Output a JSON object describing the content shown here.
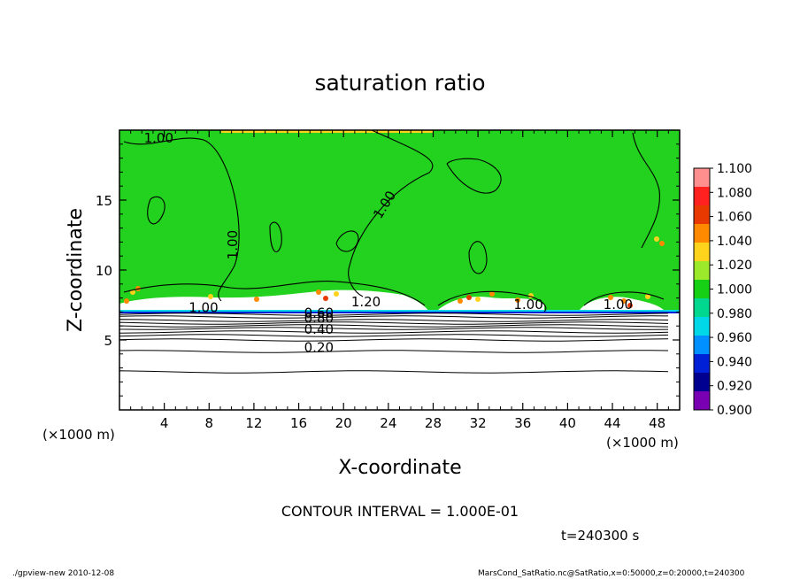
{
  "chart_data": {
    "type": "contour",
    "title": "saturation ratio",
    "xlabel": "X-coordinate",
    "ylabel": "Z-coordinate",
    "x_unit_left": "(×1000 m)",
    "x_unit_right": "(×1000 m)",
    "xlim": [
      0,
      50
    ],
    "ylim": [
      0,
      20
    ],
    "x_ticks": [
      4,
      8,
      12,
      16,
      20,
      24,
      28,
      32,
      36,
      40,
      44,
      48
    ],
    "y_ticks": [
      5,
      10,
      15
    ],
    "contour_interval_text": "CONTOUR INTERVAL = 1.000E-01",
    "time_text": "t=240300 s",
    "contour_labels": [
      {
        "text": "1.00",
        "x": 3.5,
        "y": 19.1
      },
      {
        "text": "1.00",
        "x": 24.0,
        "y": 14.5,
        "rot": -58
      },
      {
        "text": "1.00",
        "x": 10.5,
        "y": 11.8,
        "rot": -90
      },
      {
        "text": "1.20",
        "x": 22.0,
        "y": 7.4
      },
      {
        "text": "1.00",
        "x": 7.5,
        "y": 7.0
      },
      {
        "text": "1.00",
        "x": 36.5,
        "y": 7.2
      },
      {
        "text": "1.00",
        "x": 44.5,
        "y": 7.2
      },
      {
        "text": "0.60",
        "x": 17.8,
        "y": 6.6
      },
      {
        "text": "0.80",
        "x": 17.8,
        "y": 6.25
      },
      {
        "text": "0.40",
        "x": 17.8,
        "y": 5.45
      },
      {
        "text": "0.20",
        "x": 17.8,
        "y": 4.15
      }
    ],
    "colorbar": {
      "levels": [
        "1.100",
        "1.080",
        "1.060",
        "1.040",
        "1.020",
        "1.000",
        "0.980",
        "0.960",
        "0.940",
        "0.920",
        "0.900"
      ],
      "colors": [
        "#ff8f8f",
        "#ff2020",
        "#e83a00",
        "#ff8a00",
        "#ffd21c",
        "#9ce82a",
        "#16d016",
        "#00d890",
        "#00d8e8",
        "#0090ff",
        "#0020d8",
        "#000090",
        "#7a00b4"
      ]
    },
    "grid": false,
    "legend": "colorbar-right"
  },
  "footer": {
    "left": "./gpview-new   2010-12-08",
    "right": "MarsCond_SatRatio.nc@SatRatio,x=0:50000,z=0:20000,t=240300"
  },
  "colors": {
    "field": "#22d21e",
    "unsaturated": "#ffffff",
    "supersaturated_band": "#ff8a00"
  }
}
